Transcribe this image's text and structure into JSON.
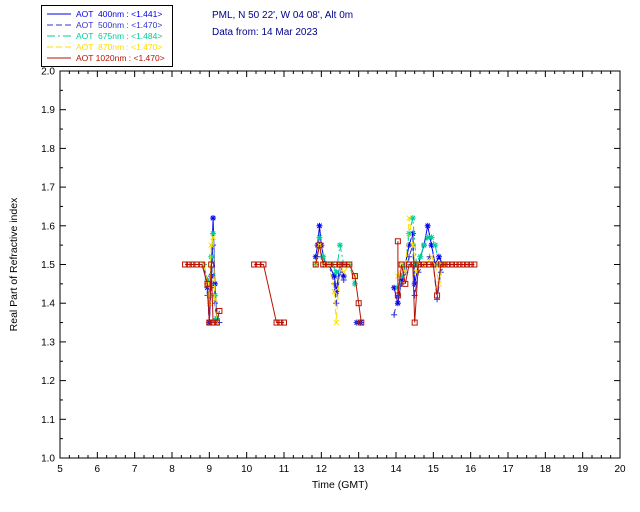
{
  "header": {
    "site": "PML, N 50 22', W 04 08', Alt 0m",
    "date": "Data from: 14 Mar 2023",
    "color": "#00008b"
  },
  "legend": {
    "entries": [
      {
        "id": "aot-400nm",
        "label": "AOT  400nm",
        "value": "<1.441>",
        "color": "#0000ee",
        "dash": "solid",
        "marker": "star"
      },
      {
        "id": "aot-500nm",
        "label": "AOT  500nm",
        "value": "<1.470>",
        "color": "#3333cc",
        "dash": "dash",
        "marker": "plus"
      },
      {
        "id": "aot-675nm",
        "label": "AOT  675nm",
        "value": "<1.484>",
        "color": "#00cc99",
        "dash": "dashdot",
        "marker": "star"
      },
      {
        "id": "aot-870nm",
        "label": "AOT  870nm",
        "value": "<1.470>",
        "color": "#ffdd00",
        "dash": "dash",
        "marker": "x"
      },
      {
        "id": "aot-1020nm",
        "label": "AOT 1020nm",
        "value": "<1.470>",
        "color": "#bb1100",
        "dash": "solid",
        "marker": "square"
      }
    ]
  },
  "chart_data": {
    "type": "line",
    "title": "",
    "xlabel": "Time (GMT)",
    "ylabel": "Real Part of Refractive index",
    "xlim": [
      5,
      20
    ],
    "ylim": [
      1.0,
      2.0
    ],
    "xticks": [
      5,
      6,
      7,
      8,
      9,
      10,
      11,
      12,
      13,
      14,
      15,
      16,
      17,
      18,
      19,
      20
    ],
    "yticks": [
      1.0,
      1.1,
      1.2,
      1.3,
      1.4,
      1.5,
      1.6,
      1.7,
      1.8,
      1.9,
      2.0
    ],
    "grid": false,
    "legend_position": "top-left",
    "series": [
      {
        "name": "AOT 400nm",
        "id": "aot-400nm",
        "mean": 1.441,
        "color": "#0000ee",
        "dash": "solid",
        "marker": "star",
        "segments": [
          [
            [
              8.85,
              1.5
            ],
            [
              8.95,
              1.44
            ],
            [
              9.0,
              1.35
            ],
            [
              9.05,
              1.47
            ],
            [
              9.1,
              1.62
            ],
            [
              9.15,
              1.45
            ],
            [
              9.2,
              1.36
            ]
          ],
          [
            [
              11.85,
              1.52
            ],
            [
              11.9,
              1.55
            ],
            [
              11.95,
              1.6
            ],
            [
              12.0,
              1.55
            ],
            [
              12.1,
              1.5
            ],
            [
              12.2,
              1.5
            ],
            [
              12.35,
              1.47
            ],
            [
              12.4,
              1.43
            ],
            [
              12.5,
              1.5
            ],
            [
              12.6,
              1.47
            ]
          ],
          [
            [
              12.95,
              1.35
            ],
            [
              13.05,
              1.35
            ]
          ],
          [
            [
              13.95,
              1.44
            ],
            [
              14.05,
              1.4
            ],
            [
              14.15,
              1.46
            ],
            [
              14.25,
              1.5
            ],
            [
              14.35,
              1.55
            ],
            [
              14.45,
              1.58
            ],
            [
              14.5,
              1.45
            ],
            [
              14.6,
              1.5
            ],
            [
              14.75,
              1.55
            ],
            [
              14.85,
              1.6
            ],
            [
              14.95,
              1.55
            ],
            [
              15.05,
              1.5
            ],
            [
              15.15,
              1.52
            ],
            [
              15.25,
              1.5
            ]
          ]
        ]
      },
      {
        "name": "AOT 500nm",
        "id": "aot-500nm",
        "mean": 1.47,
        "color": "#3333cc",
        "dash": "dash",
        "marker": "plus",
        "segments": [
          [
            [
              8.85,
              1.5
            ],
            [
              8.95,
              1.42
            ],
            [
              9.0,
              1.35
            ],
            [
              9.05,
              1.44
            ],
            [
              9.1,
              1.55
            ],
            [
              9.15,
              1.4
            ],
            [
              9.2,
              1.35
            ],
            [
              9.27,
              1.35
            ]
          ],
          [
            [
              11.85,
              1.5
            ],
            [
              11.95,
              1.55
            ],
            [
              12.0,
              1.52
            ],
            [
              12.1,
              1.5
            ],
            [
              12.2,
              1.5
            ],
            [
              12.35,
              1.45
            ],
            [
              12.4,
              1.4
            ],
            [
              12.5,
              1.48
            ],
            [
              12.6,
              1.46
            ]
          ],
          [
            [
              12.95,
              1.35
            ],
            [
              13.05,
              1.35
            ]
          ],
          [
            [
              13.95,
              1.37
            ],
            [
              14.05,
              1.42
            ],
            [
              14.15,
              1.45
            ],
            [
              14.25,
              1.48
            ],
            [
              14.35,
              1.52
            ],
            [
              14.45,
              1.55
            ],
            [
              14.5,
              1.42
            ],
            [
              14.6,
              1.48
            ],
            [
              14.75,
              1.5
            ],
            [
              14.9,
              1.52
            ],
            [
              15.0,
              1.5
            ],
            [
              15.1,
              1.41
            ],
            [
              15.2,
              1.48
            ],
            [
              15.3,
              1.5
            ]
          ]
        ]
      },
      {
        "name": "AOT 675nm",
        "id": "aot-675nm",
        "mean": 1.484,
        "color": "#00cc99",
        "dash": "dashdot",
        "marker": "star",
        "segments": [
          [
            [
              8.85,
              1.5
            ],
            [
              8.95,
              1.46
            ],
            [
              9.0,
              1.42
            ],
            [
              9.05,
              1.52
            ],
            [
              9.1,
              1.58
            ],
            [
              9.15,
              1.42
            ],
            [
              9.2,
              1.36
            ]
          ],
          [
            [
              11.85,
              1.5
            ],
            [
              11.95,
              1.57
            ],
            [
              12.05,
              1.52
            ],
            [
              12.15,
              1.5
            ],
            [
              12.3,
              1.5
            ],
            [
              12.4,
              1.48
            ],
            [
              12.5,
              1.55
            ],
            [
              12.6,
              1.5
            ],
            [
              12.75,
              1.5
            ],
            [
              12.9,
              1.45
            ]
          ],
          [
            [
              14.05,
              1.44
            ],
            [
              14.15,
              1.47
            ],
            [
              14.25,
              1.5
            ],
            [
              14.35,
              1.58
            ],
            [
              14.45,
              1.62
            ],
            [
              14.55,
              1.5
            ],
            [
              14.65,
              1.52
            ],
            [
              14.75,
              1.55
            ],
            [
              14.85,
              1.57
            ],
            [
              14.95,
              1.57
            ],
            [
              15.05,
              1.55
            ],
            [
              15.15,
              1.5
            ],
            [
              15.25,
              1.5
            ]
          ]
        ]
      },
      {
        "name": "AOT 870nm",
        "id": "aot-870nm",
        "mean": 1.47,
        "color": "#ffdd00",
        "dash": "dash",
        "marker": "x",
        "segments": [
          [
            [
              8.85,
              1.5
            ],
            [
              8.95,
              1.45
            ],
            [
              9.0,
              1.4
            ],
            [
              9.05,
              1.55
            ],
            [
              9.1,
              1.57
            ],
            [
              9.15,
              1.41
            ],
            [
              9.2,
              1.35
            ]
          ],
          [
            [
              11.85,
              1.5
            ],
            [
              11.95,
              1.55
            ],
            [
              12.05,
              1.5
            ],
            [
              12.2,
              1.5
            ],
            [
              12.35,
              1.43
            ],
            [
              12.4,
              1.35
            ],
            [
              12.5,
              1.5
            ],
            [
              12.6,
              1.48
            ],
            [
              12.75,
              1.5
            ],
            [
              12.9,
              1.47
            ]
          ],
          [
            [
              14.05,
              1.47
            ],
            [
              14.15,
              1.5
            ],
            [
              14.25,
              1.48
            ],
            [
              14.35,
              1.62
            ],
            [
              14.45,
              1.55
            ],
            [
              14.55,
              1.48
            ],
            [
              14.65,
              1.5
            ],
            [
              14.8,
              1.5
            ],
            [
              14.95,
              1.52
            ],
            [
              15.05,
              1.5
            ],
            [
              15.15,
              1.45
            ],
            [
              15.25,
              1.5
            ]
          ]
        ]
      },
      {
        "name": "AOT 1020nm",
        "id": "aot-1020nm",
        "mean": 1.47,
        "color": "#bb1100",
        "dash": "solid",
        "marker": "square",
        "segments": [
          [
            [
              8.35,
              1.5
            ],
            [
              8.45,
              1.5
            ],
            [
              8.55,
              1.5
            ],
            [
              8.65,
              1.5
            ],
            [
              8.8,
              1.5
            ],
            [
              8.95,
              1.45
            ],
            [
              9.0,
              1.35
            ],
            [
              9.05,
              1.5
            ],
            [
              9.1,
              1.35
            ],
            [
              9.2,
              1.35
            ],
            [
              9.27,
              1.38
            ]
          ],
          [
            [
              10.2,
              1.5
            ],
            [
              10.3,
              1.5
            ],
            [
              10.45,
              1.5
            ],
            [
              10.8,
              1.35
            ],
            [
              10.9,
              1.35
            ],
            [
              11.0,
              1.35
            ]
          ],
          [
            [
              11.85,
              1.5
            ],
            [
              11.95,
              1.55
            ],
            [
              12.05,
              1.5
            ],
            [
              12.2,
              1.5
            ],
            [
              12.35,
              1.5
            ],
            [
              12.5,
              1.5
            ],
            [
              12.6,
              1.5
            ],
            [
              12.75,
              1.5
            ],
            [
              12.9,
              1.47
            ],
            [
              13.0,
              1.4
            ],
            [
              13.07,
              1.35
            ]
          ],
          [
            [
              14.05,
              1.56
            ],
            [
              14.05,
              1.42
            ],
            [
              14.15,
              1.5
            ],
            [
              14.25,
              1.45
            ],
            [
              14.35,
              1.5
            ],
            [
              14.45,
              1.5
            ],
            [
              14.5,
              1.35
            ],
            [
              14.6,
              1.5
            ],
            [
              14.75,
              1.5
            ],
            [
              14.9,
              1.5
            ],
            [
              15.0,
              1.5
            ],
            [
              15.1,
              1.42
            ],
            [
              15.2,
              1.5
            ],
            [
              15.3,
              1.5
            ],
            [
              15.4,
              1.5
            ],
            [
              15.5,
              1.5
            ],
            [
              15.6,
              1.5
            ],
            [
              15.7,
              1.5
            ],
            [
              15.8,
              1.5
            ],
            [
              15.9,
              1.5
            ],
            [
              16.0,
              1.5
            ],
            [
              16.1,
              1.5
            ]
          ]
        ]
      }
    ]
  }
}
